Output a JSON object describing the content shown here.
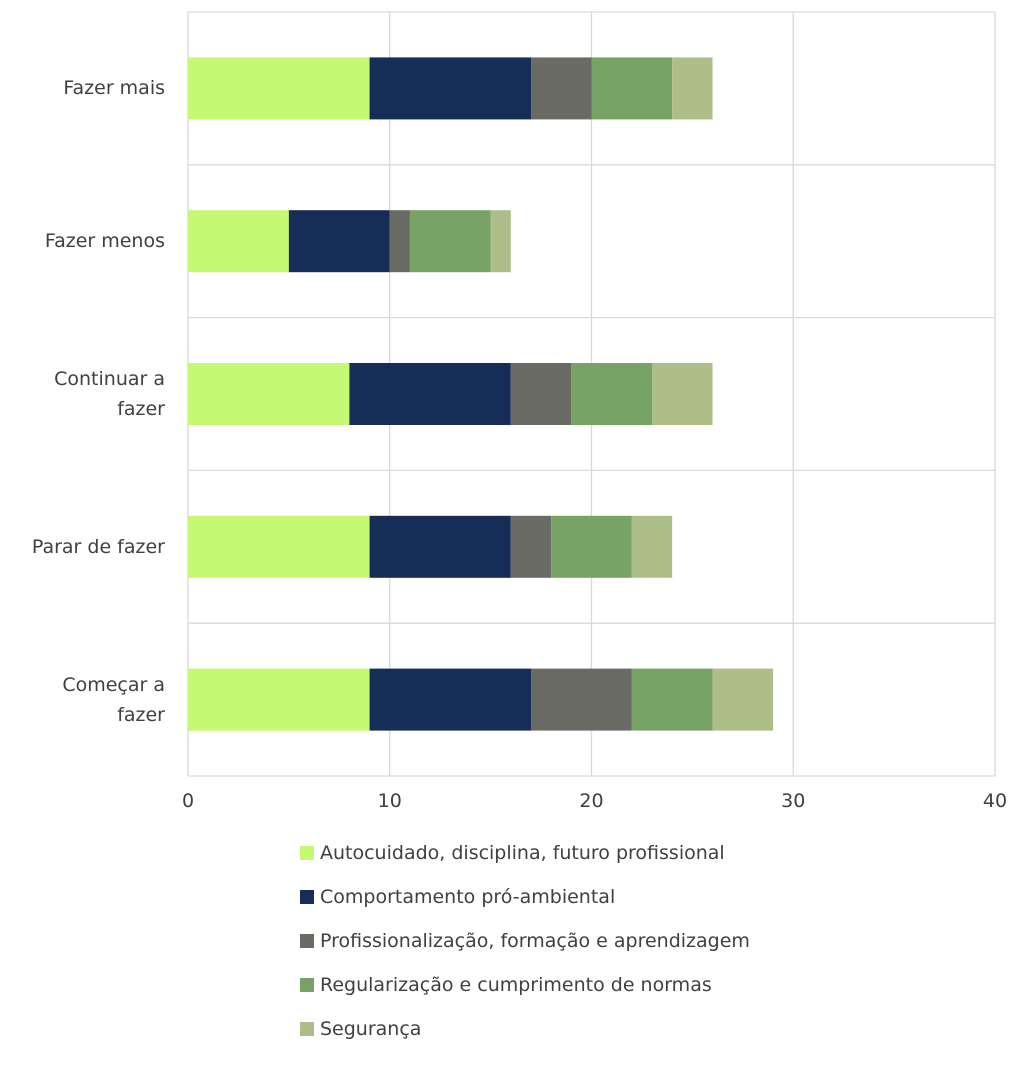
{
  "chart_data": {
    "type": "bar",
    "orientation": "horizontal",
    "stacked": true,
    "categories": [
      "Fazer mais",
      "Fazer menos",
      "Continuar a\nfazer",
      "Parar de fazer",
      "Começar a\nfazer"
    ],
    "series": [
      {
        "name": "Autocuidado, disciplina, futuro profissional",
        "color": "#c5f873",
        "values": [
          9,
          5,
          8,
          9,
          9
        ]
      },
      {
        "name": "Comportamento pró-ambiental",
        "color": "#162d57",
        "values": [
          8,
          5,
          8,
          7,
          8
        ]
      },
      {
        "name": "Profissionalização, formação e aprendizagem",
        "color": "#6a6b65",
        "values": [
          3,
          1,
          3,
          2,
          5
        ]
      },
      {
        "name": "Regularização e cumprimento de normas",
        "color": "#77a466",
        "values": [
          4,
          4,
          4,
          4,
          4
        ]
      },
      {
        "name": "Segurança",
        "color": "#adbe89",
        "values": [
          2,
          1,
          3,
          2,
          3
        ]
      }
    ],
    "xlim": [
      0,
      40
    ],
    "xticks": [
      "0",
      "10",
      "20",
      "30",
      "40"
    ],
    "grid": true,
    "legend_position": "bottom"
  }
}
